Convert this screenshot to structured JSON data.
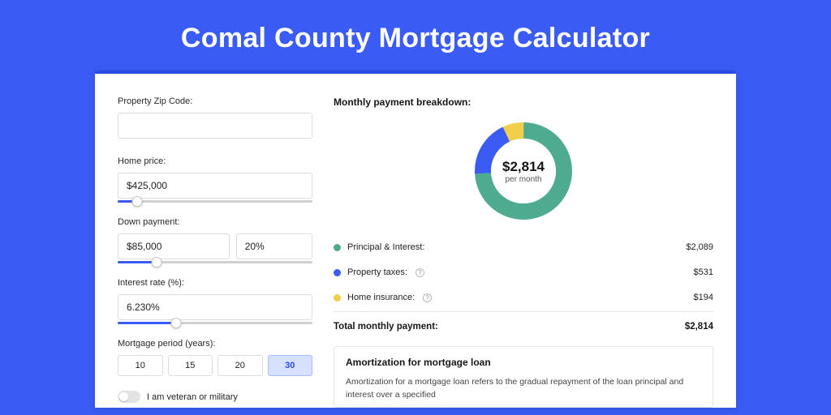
{
  "title": "Comal County Mortgage Calculator",
  "colors": {
    "page_bg": "#3a5cf4",
    "accent": "#3a5cf4",
    "donut_green": "#4fab8f",
    "donut_blue": "#3a5cf4",
    "donut_yellow": "#f2cf4a"
  },
  "left": {
    "zip": {
      "label": "Property Zip Code:",
      "value": ""
    },
    "home_price": {
      "label": "Home price:",
      "value": "$425,000",
      "slider_pct": 10
    },
    "down_payment": {
      "label": "Down payment:",
      "amount": "$85,000",
      "pct": "20%",
      "slider_pct": 20
    },
    "interest_rate": {
      "label": "Interest rate (%):",
      "value": "6.230%",
      "slider_pct": 30
    },
    "period": {
      "label": "Mortgage period (years):",
      "options": [
        "10",
        "15",
        "20",
        "30"
      ],
      "active_index": 3
    },
    "veteran": {
      "label": "I am veteran or military",
      "on": false
    }
  },
  "breakdown": {
    "title": "Monthly payment breakdown:",
    "donut": {
      "amount": "$2,814",
      "sub": "per month",
      "segments": [
        {
          "color": "#4fab8f",
          "pct": 74
        },
        {
          "color": "#3a5cf4",
          "pct": 19
        },
        {
          "color": "#f2cf4a",
          "pct": 7
        }
      ]
    },
    "rows": [
      {
        "dot": "#4fab8f",
        "label": "Principal & Interest:",
        "info": false,
        "value": "$2,089"
      },
      {
        "dot": "#3a5cf4",
        "label": "Property taxes:",
        "info": true,
        "value": "$531"
      },
      {
        "dot": "#f2cf4a",
        "label": "Home insurance:",
        "info": true,
        "value": "$194"
      }
    ],
    "total": {
      "label": "Total monthly payment:",
      "value": "$2,814"
    }
  },
  "amortization": {
    "title": "Amortization for mortgage loan",
    "text": "Amortization for a mortgage loan refers to the gradual repayment of the loan principal and interest over a specified"
  }
}
